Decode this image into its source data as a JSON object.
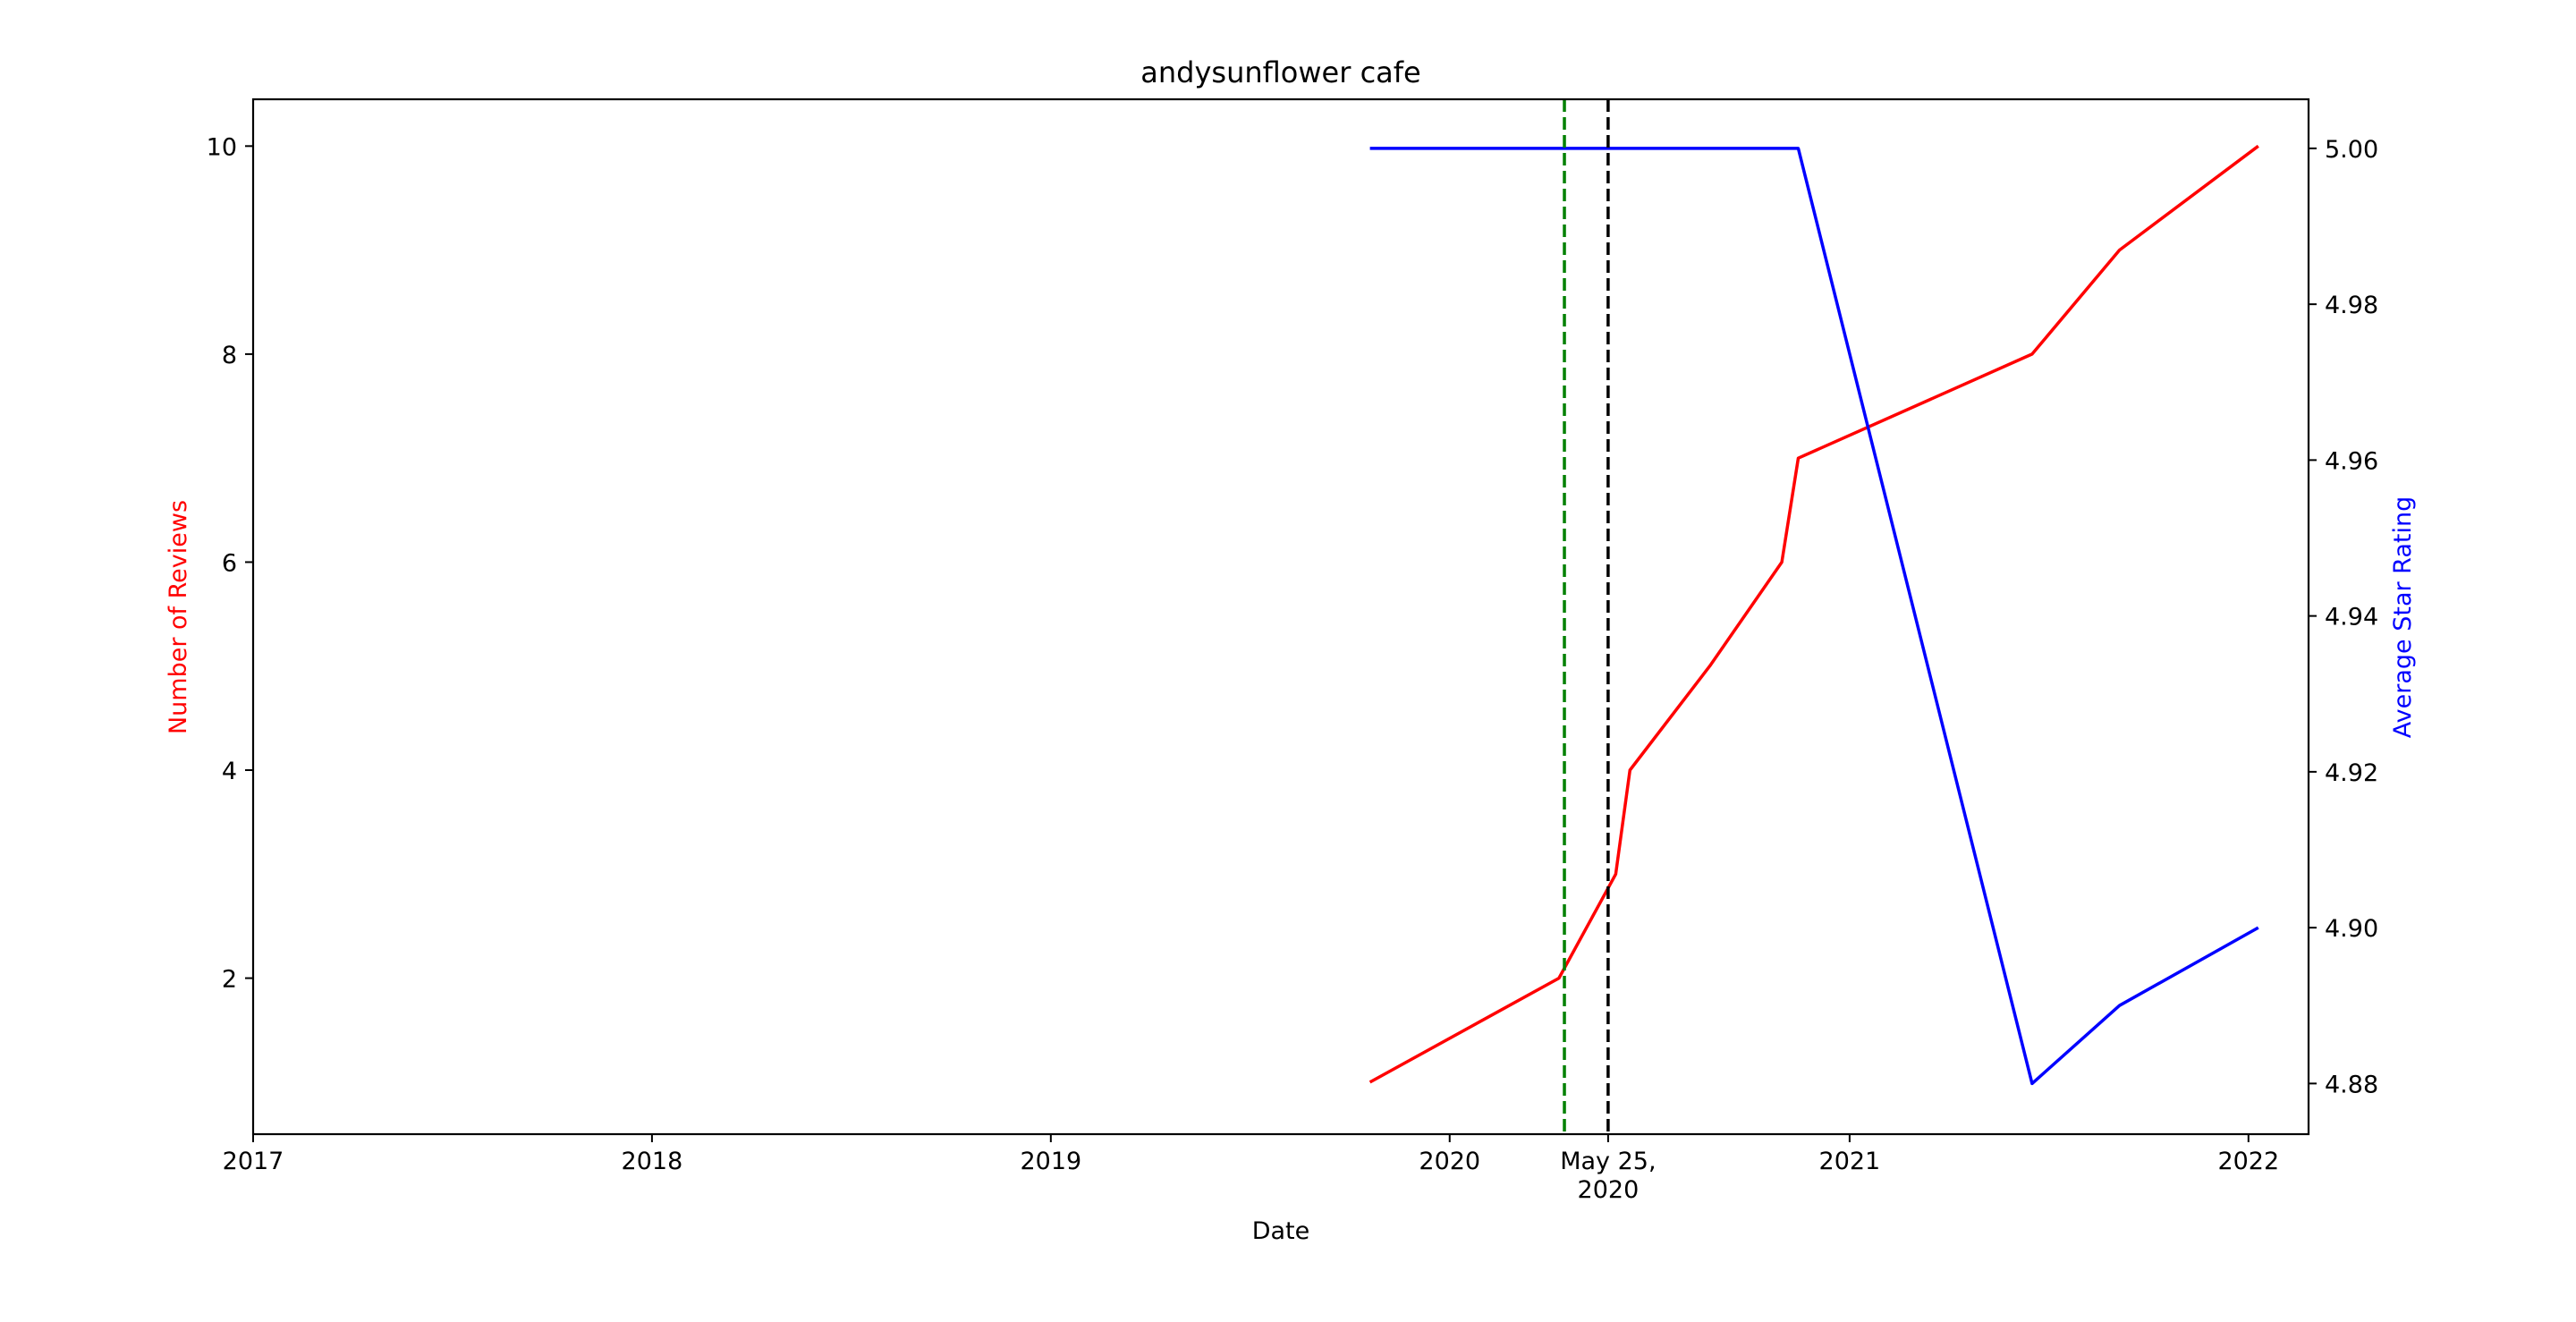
{
  "chart_data": {
    "type": "line",
    "title": "andysunflower cafe",
    "xlabel": "Date",
    "ylabel_left": "Number of Reviews",
    "ylabel_right": "Average Star Rating",
    "xlim": [
      "2017-01-01",
      "2022-02-25"
    ],
    "ylim_left": [
      0.5,
      10.45
    ],
    "ylim_right": [
      4.8735,
      5.0063
    ],
    "x_ticks": [
      {
        "date": "2017-01-01",
        "label": "2017"
      },
      {
        "date": "2018-01-01",
        "label": "2018"
      },
      {
        "date": "2019-01-01",
        "label": "2019"
      },
      {
        "date": "2020-01-01",
        "label": "2020"
      },
      {
        "date": "2020-05-25",
        "label": "May 25,\n2020"
      },
      {
        "date": "2021-01-01",
        "label": "2021"
      },
      {
        "date": "2022-01-01",
        "label": "2022"
      }
    ],
    "y_ticks_left": [
      2,
      4,
      6,
      8,
      10
    ],
    "y_ticks_right": [
      4.88,
      4.9,
      4.92,
      4.94,
      4.96,
      4.98,
      5.0
    ],
    "y_tick_labels_right": [
      "4.88",
      "4.90",
      "4.92",
      "4.94",
      "4.96",
      "4.98",
      "5.00"
    ],
    "grid": false,
    "colors": {
      "reviews": "#ff0000",
      "rating": "#0000ff",
      "green_line": "#008000",
      "black_line": "#000000",
      "axis": "#000000"
    },
    "series": [
      {
        "axis": "left",
        "color": "#ff0000",
        "points": [
          {
            "x": "2019-10-20",
            "y": 1
          },
          {
            "x": "2020-04-10",
            "y": 2
          },
          {
            "x": "2020-06-01",
            "y": 3
          },
          {
            "x": "2020-06-14",
            "y": 4
          },
          {
            "x": "2020-08-26",
            "y": 5
          },
          {
            "x": "2020-10-31",
            "y": 6
          },
          {
            "x": "2020-11-15",
            "y": 7
          },
          {
            "x": "2021-06-17",
            "y": 8
          },
          {
            "x": "2021-09-05",
            "y": 9
          },
          {
            "x": "2022-01-10",
            "y": 10
          }
        ]
      },
      {
        "axis": "right",
        "color": "#0000ff",
        "points": [
          {
            "x": "2019-10-20",
            "y": 5.0
          },
          {
            "x": "2020-11-15",
            "y": 5.0
          },
          {
            "x": "2021-06-17",
            "y": 4.88
          },
          {
            "x": "2021-09-05",
            "y": 4.89
          },
          {
            "x": "2022-01-10",
            "y": 4.9
          }
        ]
      }
    ],
    "vlines": [
      {
        "x": "2020-04-15",
        "color": "#008000",
        "style": "dashed"
      },
      {
        "x": "2020-05-25",
        "color": "#000000",
        "style": "dashed"
      }
    ]
  }
}
